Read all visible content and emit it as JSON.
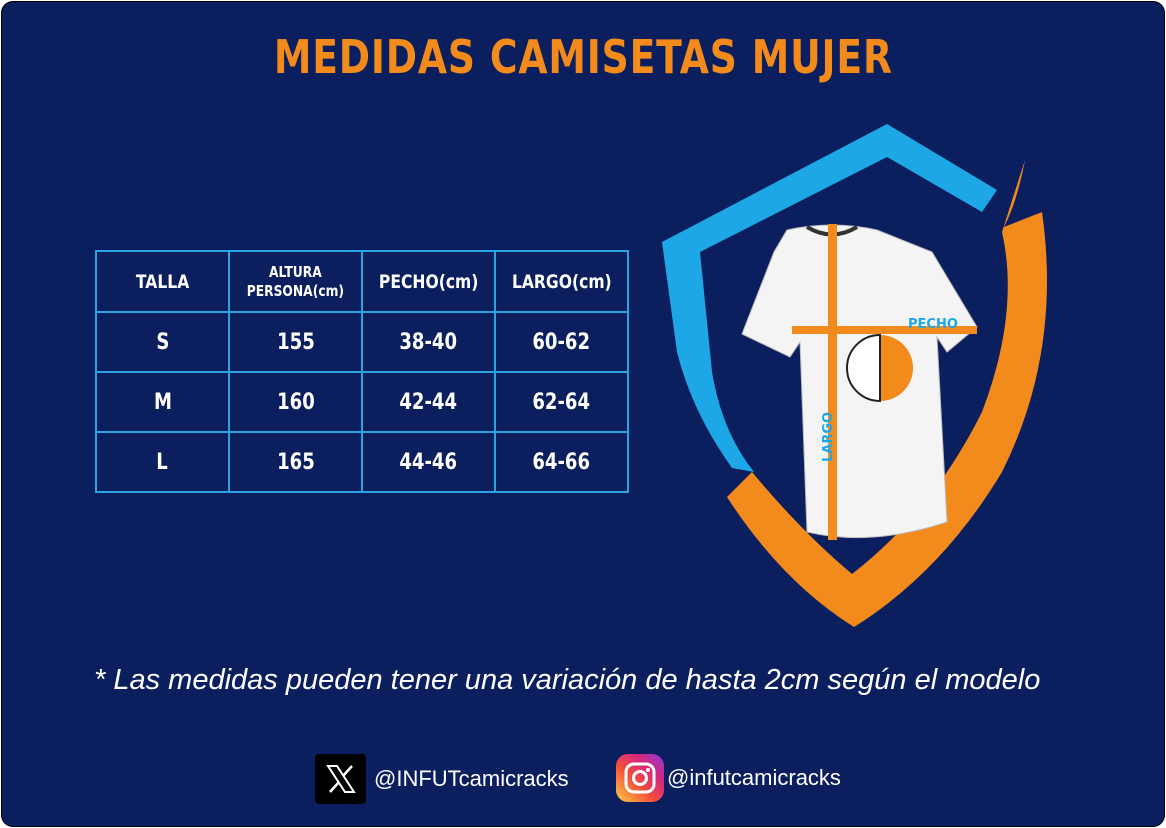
{
  "title": "MEDIDAS CAMISETAS MUJER",
  "table": {
    "headers": [
      "TALLA",
      "ALTURA PERSONA(cm)",
      "PECHO(cm)",
      "LARGO(cm)"
    ],
    "header_altura_line1": "ALTURA",
    "header_altura_line2": "PERSONA(cm)",
    "rows": [
      [
        "S",
        "155",
        "38-40",
        "60-62"
      ],
      [
        "M",
        "160",
        "42-44",
        "62-64"
      ],
      [
        "L",
        "165",
        "44-46",
        "64-66"
      ]
    ]
  },
  "diagram": {
    "chest_label": "PECHO",
    "length_label": "LARGO"
  },
  "note": "* Las medidas pueden tener una variación de hasta 2cm según el modelo",
  "social": {
    "x_handle": "@INFUTcamicracks",
    "instagram_handle": "@infutcamicracks"
  },
  "colors": {
    "background": "#0b1f5e",
    "orange": "#f38a1c",
    "blue": "#1ea7e6"
  }
}
